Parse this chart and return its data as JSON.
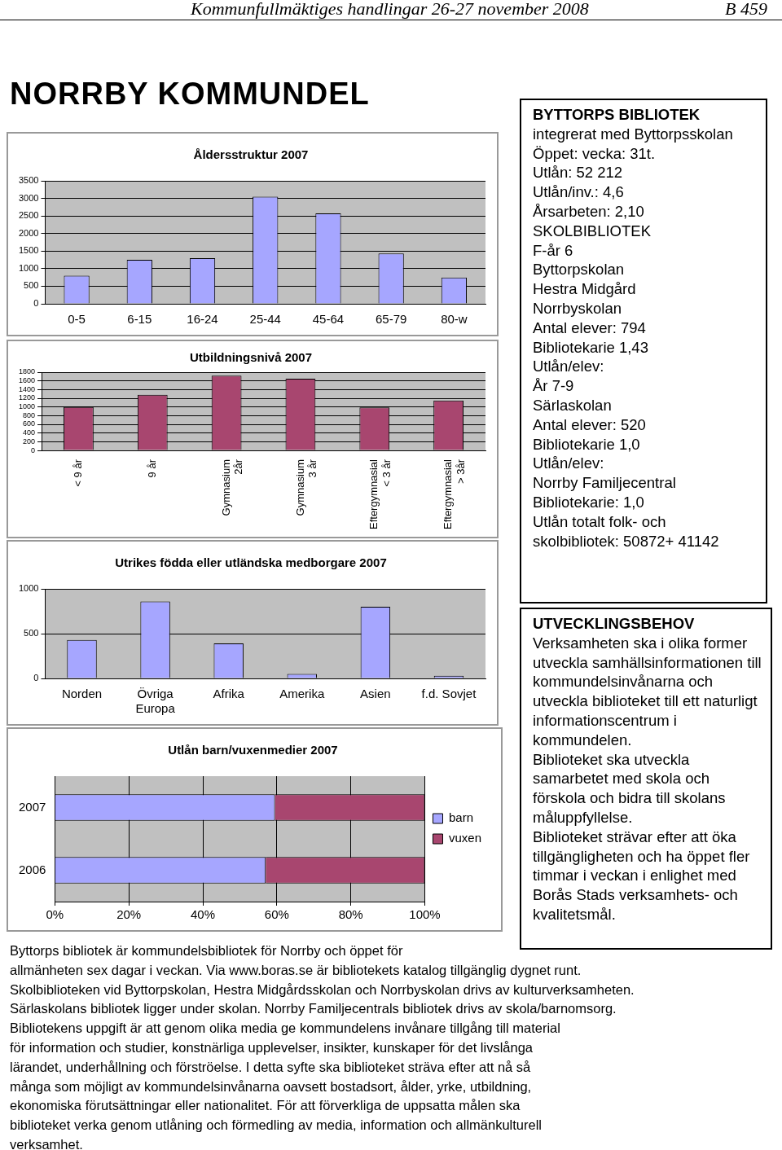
{
  "chart_data": [
    {
      "type": "other",
      "title": "NORRBY KOMMUNDEL",
      "annotations": [
        "Kommunfullmäktiges handlingar 26-27 november 2008",
        "B 459"
      ]
    },
    {
      "type": "bar",
      "title": "Åldersstruktur 2007",
      "categories": [
        "0-5",
        "6-15",
        "16-24",
        "25-44",
        "45-64",
        "65-79",
        "80-w"
      ],
      "values": [
        800,
        1250,
        1300,
        3050,
        2570,
        1430,
        750
      ],
      "color": "#a6a6ff",
      "ylim": [
        0,
        3500
      ],
      "yticks": [
        0,
        500,
        1000,
        1500,
        2000,
        2500,
        3000,
        3500
      ],
      "grid": "y"
    },
    {
      "type": "bar",
      "title": "Utbildningsnivå 2007",
      "categories": [
        "< 9 år",
        "9 år",
        "Gymnasium 2år",
        "Gymnasium 3 år",
        "Eftergymnasial < 3 år",
        "Eftergymnasial > 3år"
      ],
      "values": [
        1000,
        1280,
        1720,
        1650,
        990,
        1150
      ],
      "color": "#a8466f",
      "ylim": [
        0,
        1800
      ],
      "yticks": [
        0,
        200,
        400,
        600,
        800,
        1000,
        1200,
        1400,
        1600,
        1800
      ],
      "grid": "y"
    },
    {
      "type": "bar",
      "title": "Utrikes födda eller utländska medborgare 2007",
      "categories": [
        "Norden",
        "Övriga Europa",
        "Afrika",
        "Amerika",
        "Asien",
        "f.d. Sovjet"
      ],
      "values": [
        430,
        860,
        390,
        50,
        800,
        30
      ],
      "color": "#a6a6ff",
      "ylim": [
        0,
        1000
      ],
      "yticks": [
        0,
        500,
        1000
      ],
      "grid": "y"
    },
    {
      "type": "bar",
      "title": "Utlån barn/vuxenmedier 2007",
      "orientation": "horizontal",
      "stacked": true,
      "categories": [
        "2007",
        "2006"
      ],
      "series": [
        {
          "name": "barn",
          "color": "#a6a6ff",
          "values": [
            59.5,
            57
          ]
        },
        {
          "name": "vuxen",
          "color": "#a8466f",
          "values": [
            40.5,
            43
          ]
        }
      ],
      "xlim": [
        0,
        100
      ],
      "xticks": [
        {
          "value": 0,
          "label": "0%"
        },
        {
          "value": 20,
          "label": "20%"
        },
        {
          "value": 40,
          "label": "40%"
        },
        {
          "value": 60,
          "label": "60%"
        },
        {
          "value": 80,
          "label": "80%"
        },
        {
          "value": 100,
          "label": "100%"
        }
      ],
      "grid": "x",
      "legend": "right"
    },
    {
      "type": "other",
      "title": "BYTTORPS BIBLIOTEK",
      "annotations": [
        "integrerat med Byttorpsskolan",
        "Öppet: vecka: 31t.",
        "Utlån: 52 212",
        "Utlån/inv.: 4,6",
        "Årsarbeten: 2,10",
        "SKOLBIBLIOTEK",
        "F-år 6",
        "Byttorpskolan",
        "Hestra Midgård",
        "Norrbyskolan",
        "Antal elever: 794",
        "Bibliotekarie 1,43",
        "Utlån/elev:",
        "År 7-9",
        "Särlaskolan",
        "Antal elever: 520",
        "Bibliotekarie 1,0",
        "Utlån/elev:",
        "Norrby Familjecentral",
        "Bibliotekarie: 1,0",
        "Utlån totalt folk- och",
        "skolbibliotek: 50872+ 41142"
      ]
    },
    {
      "type": "other",
      "title": "UTVECKLINGSBEHOV",
      "annotations": [
        "Verksamheten ska i olika former",
        "utveckla samhällsinformationen till",
        "kommundelsinvånarna och",
        "utveckla biblioteket till ett naturligt",
        "informationscentrum i",
        "kommundelen.",
        "Biblioteket ska utveckla",
        "samarbetet med skola och",
        "förskola och bidra till skolans",
        "måluppfyllelse.",
        "Biblioteket strävar efter att öka",
        "tillgängligheten och ha öppet fler",
        "timmar i veckan i enlighet med",
        "Borås Stads verksamhets- och",
        "kvalitetsmål."
      ]
    },
    {
      "type": "other",
      "annotations": [
        "Byttorps bibliotek är kommundelsbibliotek för Norrby och öppet för",
        "allmänheten sex dagar i veckan. Via www.boras.se är bibliotekets katalog tillgänglig dygnet runt.",
        "Skolbiblioteken vid Byttorpskolan, Hestra Midgårdsskolan och Norrbyskolan drivs av kulturverksamheten.",
        "Särlaskolans bibliotek ligger under skolan. Norrby Familjecentrals bibliotek drivs av skola/barnomsorg.",
        "Bibliotekens uppgift är att genom olika media ge kommundelens invånare tillgång till material",
        "för information och studier, konstnärliga upplevelser, insikter, kunskaper för det livslånga",
        "lärandet, underhållning och förströelse. I detta syfte ska biblioteket sträva efter att nå så",
        "många som möjligt av kommundelsinvånarna oavsett bostadsort, ålder, yrke, utbildning,",
        "ekonomiska förutsättningar eller nationalitet. För att förverkliga de uppsatta målen ska",
        "biblioteket verka genom utlåning och förmedling av media, information och allmänkulturell",
        "verksamhet."
      ]
    }
  ]
}
